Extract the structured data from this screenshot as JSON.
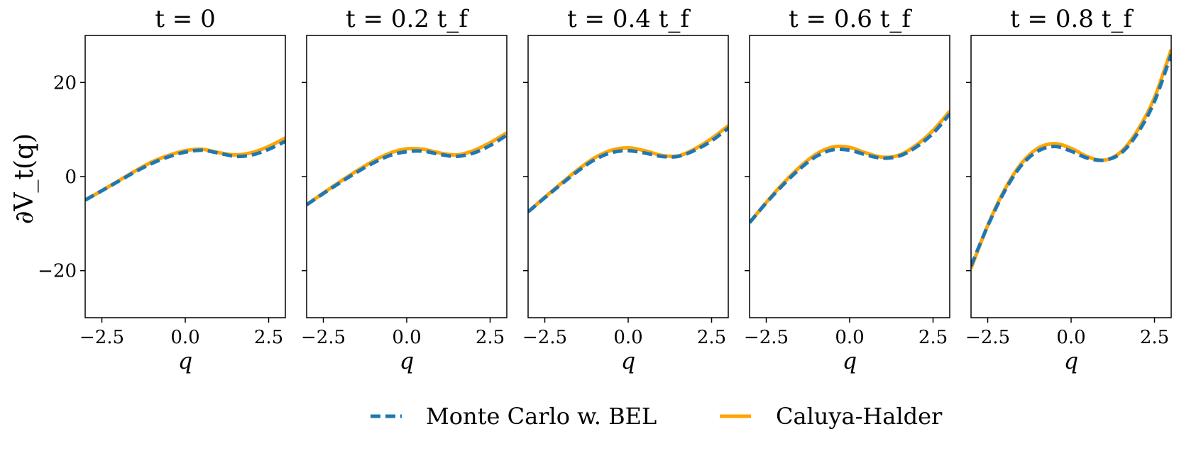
{
  "colors": {
    "mc": "#1f77b4",
    "ch": "#ffa500",
    "axes": "#000000"
  },
  "legend": {
    "placement": "bottom-center",
    "entries": [
      {
        "label": "Monte Carlo w. BEL",
        "style": "dashed",
        "color_key": "mc"
      },
      {
        "label": "Caluya-Halder",
        "style": "solid",
        "color_key": "ch"
      }
    ]
  },
  "chart_data": [
    {
      "type": "line",
      "title": "t = 0",
      "xlabel": "q",
      "ylabel": "∂V_t(q)",
      "xlim": [
        -3,
        3
      ],
      "ylim": [
        -30,
        30
      ],
      "xticks": [
        -2.5,
        0.0,
        2.5
      ],
      "xtick_labels": [
        "−2.5",
        "0.0",
        "2.5"
      ],
      "yticks": [
        -20,
        0,
        20
      ],
      "ytick_labels": [
        "−20",
        "0",
        "20"
      ],
      "x": [
        -3,
        -2.5,
        -2,
        -1.5,
        -1,
        -0.5,
        0,
        0.5,
        1,
        1.5,
        2,
        2.5,
        3
      ],
      "series": [
        {
          "name": "Monte Carlo w. BEL",
          "values": [
            -5.0,
            -3.0,
            -1.0,
            1.0,
            2.8,
            4.2,
            5.2,
            5.6,
            5.0,
            4.3,
            4.6,
            5.8,
            7.5
          ]
        },
        {
          "name": "Caluya-Halder",
          "values": [
            -5.0,
            -3.0,
            -0.9,
            1.2,
            3.1,
            4.5,
            5.5,
            5.8,
            5.1,
            4.6,
            5.1,
            6.4,
            8.2
          ]
        }
      ]
    },
    {
      "type": "line",
      "title": "t = 0.2 t_f",
      "xlabel": "q",
      "ylabel": "",
      "xlim": [
        -3,
        3
      ],
      "ylim": [
        -30,
        30
      ],
      "xticks": [
        -2.5,
        0.0,
        2.5
      ],
      "xtick_labels": [
        "−2.5",
        "0.0",
        "2.5"
      ],
      "yticks": [
        -20,
        0,
        20
      ],
      "ytick_labels": [
        "",
        "",
        ""
      ],
      "x": [
        -3,
        -2.5,
        -2,
        -1.5,
        -1,
        -0.5,
        0,
        0.5,
        1,
        1.5,
        2,
        2.5,
        3
      ],
      "series": [
        {
          "name": "Monte Carlo w. BEL",
          "values": [
            -6.0,
            -3.6,
            -1.3,
            0.9,
            2.9,
            4.5,
            5.3,
            5.4,
            4.7,
            4.3,
            5.0,
            6.6,
            8.8
          ]
        },
        {
          "name": "Caluya-Halder",
          "values": [
            -6.0,
            -3.5,
            -1.1,
            1.2,
            3.3,
            5.0,
            5.9,
            5.8,
            5.0,
            4.6,
            5.5,
            7.2,
            9.3
          ]
        }
      ]
    },
    {
      "type": "line",
      "title": "t = 0.4 t_f",
      "xlabel": "q",
      "ylabel": "",
      "xlim": [
        -3,
        3
      ],
      "ylim": [
        -30,
        30
      ],
      "xticks": [
        -2.5,
        0.0,
        2.5
      ],
      "xtick_labels": [
        "−2.5",
        "0.0",
        "2.5"
      ],
      "yticks": [
        -20,
        0,
        20
      ],
      "ytick_labels": [
        "",
        "",
        ""
      ],
      "x": [
        -3,
        -2.5,
        -2,
        -1.5,
        -1,
        -0.5,
        0,
        0.5,
        1,
        1.5,
        2,
        2.5,
        3
      ],
      "series": [
        {
          "name": "Monte Carlo w. BEL",
          "values": [
            -7.5,
            -4.5,
            -1.6,
            1.2,
            3.6,
            5.1,
            5.5,
            5.0,
            4.3,
            4.3,
            5.6,
            7.6,
            10.3
          ]
        },
        {
          "name": "Caluya-Halder",
          "values": [
            -7.5,
            -4.4,
            -1.4,
            1.5,
            4.0,
            5.6,
            6.1,
            5.5,
            4.5,
            4.4,
            5.9,
            8.1,
            10.8
          ]
        }
      ]
    },
    {
      "type": "line",
      "title": "t = 0.6 t_f",
      "xlabel": "q",
      "ylabel": "",
      "xlim": [
        -3,
        3
      ],
      "ylim": [
        -30,
        30
      ],
      "xticks": [
        -2.5,
        0.0,
        2.5
      ],
      "xtick_labels": [
        "−2.5",
        "0.0",
        "2.5"
      ],
      "yticks": [
        -20,
        0,
        20
      ],
      "ytick_labels": [
        "",
        "",
        ""
      ],
      "x": [
        -3,
        -2.5,
        -2,
        -1.5,
        -1,
        -0.5,
        0,
        0.5,
        1,
        1.5,
        2,
        2.5,
        3
      ],
      "series": [
        {
          "name": "Monte Carlo w. BEL",
          "values": [
            -9.8,
            -5.6,
            -1.8,
            1.6,
            4.3,
            5.7,
            5.6,
            4.6,
            3.9,
            4.4,
            6.3,
            9.2,
            13.3
          ]
        },
        {
          "name": "Caluya-Halder",
          "values": [
            -9.8,
            -5.5,
            -1.5,
            2.0,
            4.8,
            6.3,
            6.2,
            5.0,
            4.1,
            4.6,
            6.7,
            9.8,
            13.9
          ]
        }
      ]
    },
    {
      "type": "line",
      "title": "t = 0.8 t_f",
      "xlabel": "q",
      "ylabel": "",
      "xlim": [
        -3,
        3
      ],
      "ylim": [
        -30,
        30
      ],
      "xticks": [
        -2.5,
        0.0,
        2.5
      ],
      "xtick_labels": [
        "−2.5",
        "0.0",
        "2.5"
      ],
      "yticks": [
        -20,
        0,
        20
      ],
      "ytick_labels": [
        "",
        "",
        ""
      ],
      "x": [
        -3,
        -2.5,
        -2,
        -1.5,
        -1,
        -0.5,
        0,
        0.5,
        1,
        1.5,
        2,
        2.5,
        3
      ],
      "series": [
        {
          "name": "Monte Carlo w. BEL",
          "values": [
            -19.0,
            -10.5,
            -3.2,
            2.3,
            5.4,
            6.4,
            5.4,
            3.9,
            3.5,
            5.0,
            9.3,
            16.0,
            26.0
          ]
        },
        {
          "name": "Caluya-Halder",
          "values": [
            -19.5,
            -10.4,
            -2.9,
            2.7,
            6.0,
            7.0,
            6.0,
            4.2,
            3.5,
            5.3,
            9.9,
            16.8,
            27.0
          ]
        }
      ]
    }
  ]
}
